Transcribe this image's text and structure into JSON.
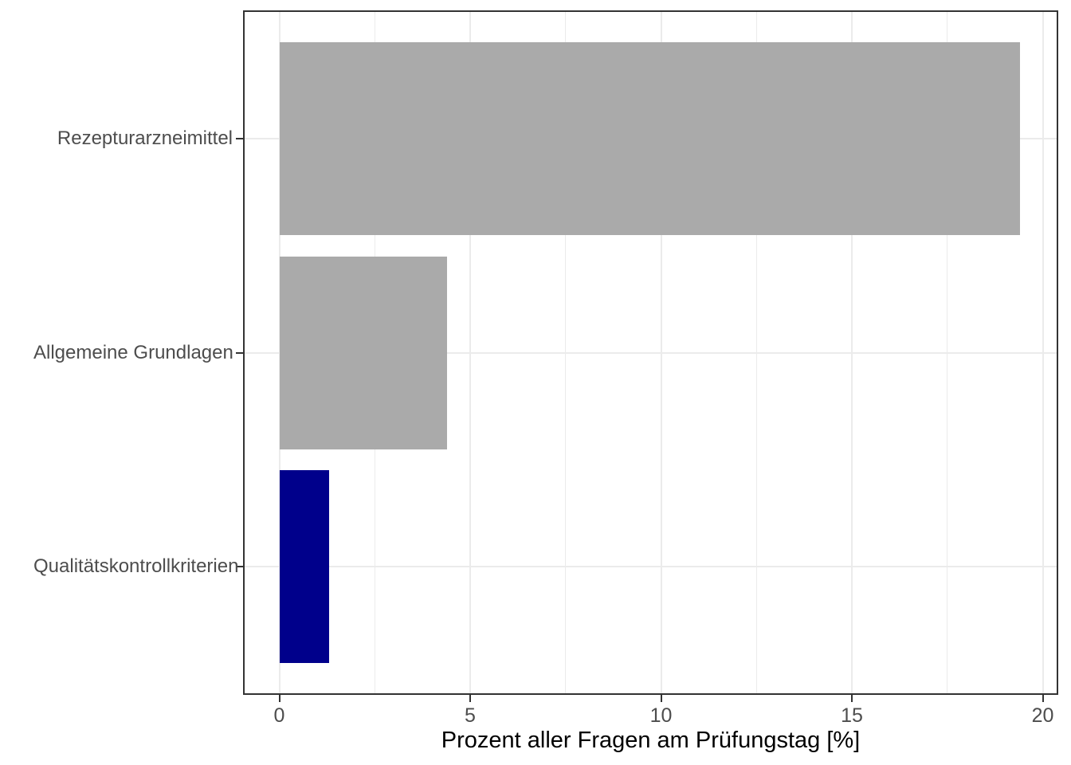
{
  "chart_data": {
    "type": "bar",
    "orientation": "horizontal",
    "title": "",
    "xlabel": "Prozent aller Fragen am Prüfungstag [%]",
    "ylabel": "",
    "categories": [
      "Rezepturarzneimittel",
      "Allgemeine Grundlagen",
      "Qualitätskontrollkriterien"
    ],
    "values": [
      19.4,
      4.4,
      1.3
    ],
    "bar_colors": [
      "#AAAAAA",
      "#AAAAAA",
      "#00008B"
    ],
    "xlim": [
      0,
      20
    ],
    "x_major_ticks": [
      0,
      5,
      10,
      15,
      20
    ],
    "x_minor_ticks": [
      2.5,
      7.5,
      12.5,
      17.5
    ],
    "grid": "major-and-minor-vertical, category-major-horizontal",
    "legend_position": "none",
    "colors": {
      "gray_bar": "#AAAAAA",
      "highlight_bar": "#00008B",
      "grid": "#EBEBEB",
      "panel_border": "#333333",
      "axis_text": "#4D4D4D",
      "axis_title": "#000000",
      "background": "#FFFFFF"
    }
  }
}
